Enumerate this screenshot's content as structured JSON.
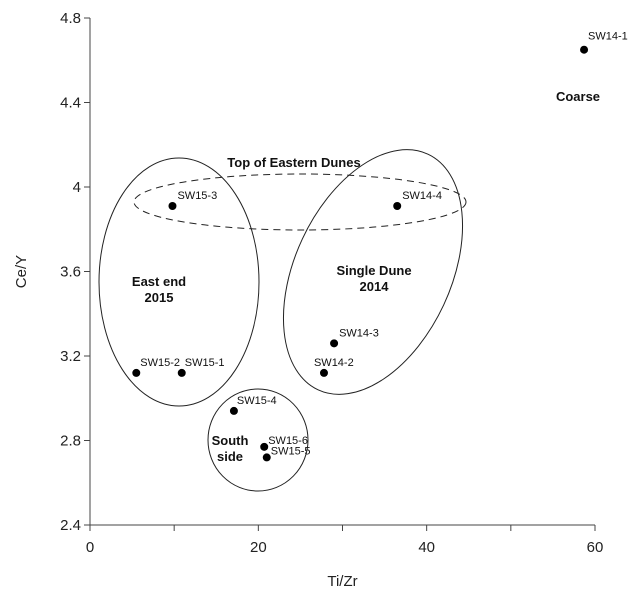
{
  "chart_data": {
    "type": "scatter",
    "title": "",
    "xlabel": "Ti/Zr",
    "ylabel": "Ce/Y",
    "xlim": [
      0,
      60
    ],
    "ylim": [
      2.4,
      4.8
    ],
    "x_ticks": [
      0,
      10,
      20,
      30,
      40,
      50,
      60
    ],
    "x_tick_labels": [
      "0",
      "",
      "20",
      "",
      "40",
      "",
      "60"
    ],
    "y_ticks": [
      2.4,
      2.8,
      3.2,
      3.6,
      4.0,
      4.4,
      4.8
    ],
    "y_tick_labels": [
      "2.4",
      "2.8",
      "3.2",
      "3.6",
      "4",
      "4.4",
      "4.8"
    ],
    "grid": false,
    "points": [
      {
        "label": "SW14-1",
        "x": 58.7,
        "y": 4.65
      },
      {
        "label": "SW15-3",
        "x": 9.8,
        "y": 3.91
      },
      {
        "label": "SW14-4",
        "x": 36.5,
        "y": 3.91
      },
      {
        "label": "SW14-3",
        "x": 29.0,
        "y": 3.26
      },
      {
        "label": "SW14-2",
        "x": 27.8,
        "y": 3.12
      },
      {
        "label": "SW15-2",
        "x": 5.5,
        "y": 3.12
      },
      {
        "label": "SW15-1",
        "x": 10.9,
        "y": 3.12
      },
      {
        "label": "SW15-4",
        "x": 17.1,
        "y": 2.94
      },
      {
        "label": "SW15-6",
        "x": 20.7,
        "y": 2.77
      },
      {
        "label": "SW15-5",
        "x": 21.0,
        "y": 2.72
      }
    ],
    "group_labels": [
      {
        "id": "coarse",
        "lines": [
          "Coarse"
        ]
      },
      {
        "id": "top-eastern",
        "lines": [
          "Top of Eastern Dunes"
        ]
      },
      {
        "id": "east-end",
        "lines": [
          "East end",
          "2015"
        ]
      },
      {
        "id": "single-dune",
        "lines": [
          "Single Dune",
          "2014"
        ]
      },
      {
        "id": "south-side",
        "lines": [
          "South",
          "side"
        ]
      }
    ]
  }
}
